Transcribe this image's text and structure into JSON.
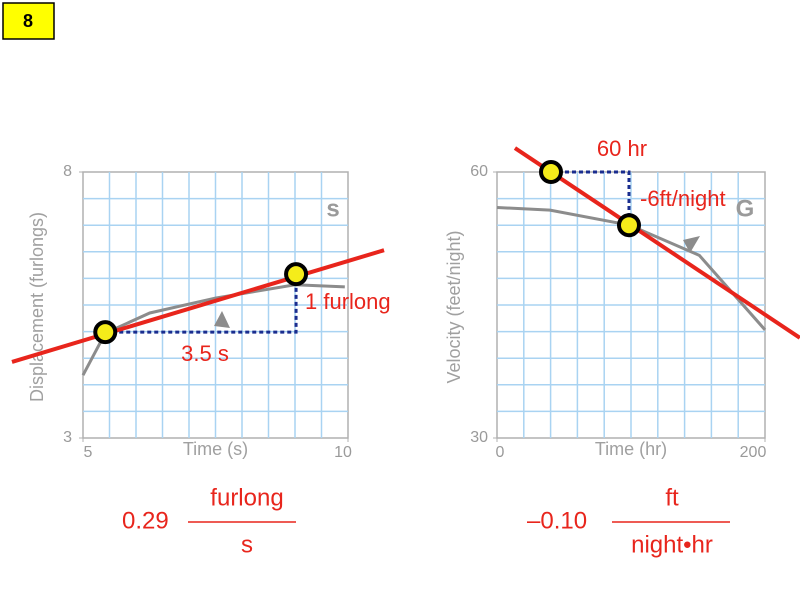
{
  "slide_number": "8",
  "chart_data": [
    {
      "type": "line",
      "xlabel": "Time (s)",
      "ylabel": "Displacement (furlongs)",
      "xlim": [
        5,
        10
      ],
      "ylim": [
        3,
        8
      ],
      "xticks": [
        5,
        10
      ],
      "yticks": [
        3,
        8
      ],
      "xgrid": [
        5.5,
        6,
        6.5,
        7,
        7.5,
        8,
        8.5,
        9,
        9.5
      ],
      "ygrid": [
        3.5,
        4,
        4.5,
        5,
        5.5,
        6,
        6.5,
        7,
        7.5
      ],
      "curve": {
        "color": "#8c8c8c",
        "x": [
          5,
          5.42,
          6.26,
          7.5,
          9,
          9.94
        ],
        "values": [
          4.18,
          4.97,
          5.35,
          5.63,
          5.88,
          5.84
        ]
      },
      "tangent": {
        "color": "#e8251c",
        "x": [
          3.66,
          10.68
        ],
        "values": [
          4.43,
          6.53
        ]
      },
      "points": {
        "color": "#f5ec1a",
        "x": [
          5.42,
          9.02
        ],
        "values": [
          4.99,
          6.08
        ]
      },
      "run_label": "3.5 s",
      "rise_label": "1 furlong",
      "watermark": "s",
      "slope": {
        "value": "0.29",
        "numerator": "furlong",
        "denominator": "s"
      }
    },
    {
      "type": "line",
      "xlabel": "Time (hr)",
      "ylabel": "Velocity (feet/night)",
      "xlim": [
        0,
        200
      ],
      "ylim": [
        30,
        60
      ],
      "xticks": [
        0,
        200
      ],
      "yticks": [
        30,
        60
      ],
      "xgrid": [
        20,
        40,
        60,
        80,
        100,
        120,
        140,
        160,
        180
      ],
      "ygrid": [
        33,
        36,
        39,
        42,
        45,
        48,
        51,
        54,
        57
      ],
      "curve": {
        "color": "#8c8c8c",
        "x": [
          0,
          39.6,
          99,
          151,
          200
        ],
        "values": [
          56.0,
          55.7,
          54.0,
          50.6,
          42.2
        ]
      },
      "tangent": {
        "color": "#e8251c",
        "x": [
          13.4,
          226
        ],
        "values": [
          62.7,
          41.3
        ]
      },
      "points": {
        "color": "#f5ec1a",
        "x": [
          40.3,
          98.5
        ],
        "values": [
          60,
          54.0
        ]
      },
      "run_label": "60 hr",
      "rise_label": "-6ft/night",
      "watermark": "G",
      "slope": {
        "value": "–0.10",
        "numerator": "ft",
        "denominator": "night•hr"
      }
    }
  ]
}
